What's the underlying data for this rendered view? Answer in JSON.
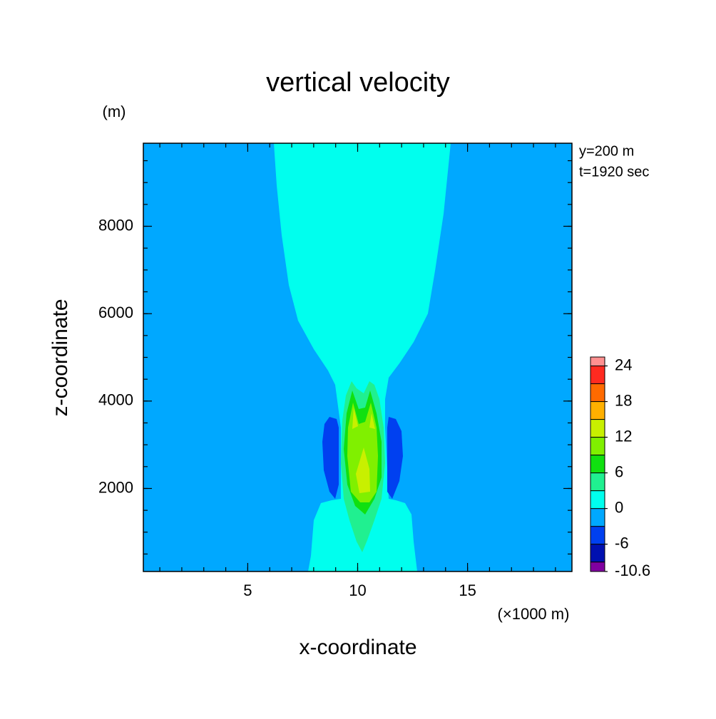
{
  "chart_data": {
    "type": "contour",
    "title": "vertical velocity",
    "y_unit": "(m)",
    "x_unit": "(×1000 m)",
    "xlabel": "x-coordinate",
    "ylabel": "z-coordinate",
    "annotations": [
      "y=200 m",
      "t=1920 sec"
    ],
    "xlim": [
      0.25,
      19.75
    ],
    "ylim": [
      100,
      9900
    ],
    "xticks": [
      5,
      10,
      15
    ],
    "yticks": [
      2000,
      4000,
      6000,
      8000
    ],
    "xminorticks": [
      1,
      2,
      3,
      4,
      5,
      6,
      7,
      8,
      9,
      10,
      11,
      12,
      13,
      14,
      15,
      16,
      17,
      18,
      19
    ],
    "yminorticks": [
      500,
      1000,
      1500,
      2000,
      2500,
      3000,
      3500,
      4000,
      4500,
      5000,
      5500,
      6000,
      6500,
      7000,
      7500,
      8000,
      8500,
      9000,
      9500
    ],
    "colorbar": {
      "levels": [
        -10.6,
        -9,
        -6,
        -3,
        0,
        3,
        6,
        9,
        12,
        15,
        18,
        21,
        24,
        25.5
      ],
      "colors": [
        "#8000a0",
        "#0010b0",
        "#0040f0",
        "#00a8ff",
        "#00ffee",
        "#20f090",
        "#10e010",
        "#80f000",
        "#c8f000",
        "#ffb000",
        "#ff6a00",
        "#ff2a20",
        "#ff9090",
        "#ff9090"
      ],
      "ticks": [
        24,
        18,
        12,
        6,
        0,
        -6,
        -10.6
      ]
    }
  }
}
